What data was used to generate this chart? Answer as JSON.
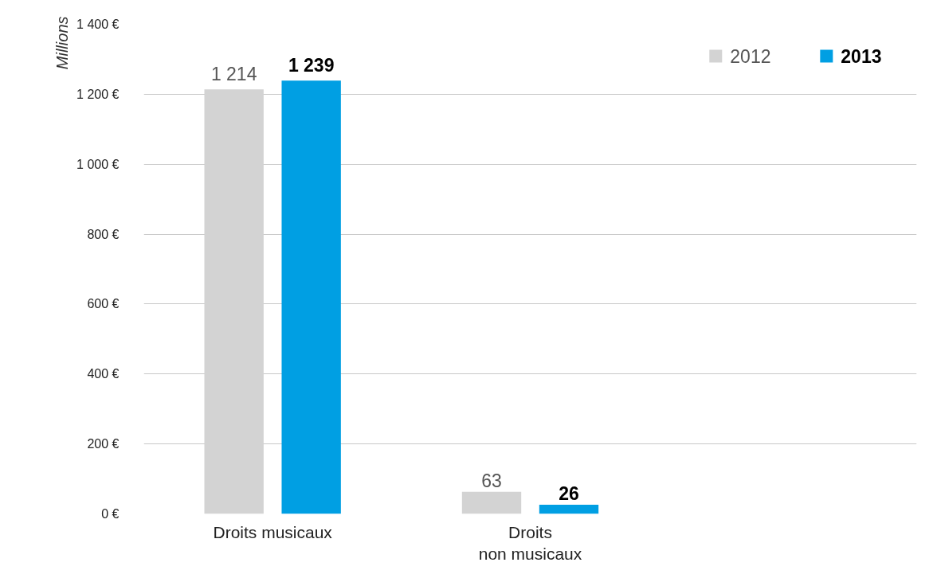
{
  "chart_data": {
    "type": "bar",
    "ylabel": "Millions",
    "categories": [
      "Droits musicaux",
      "Droits\nnon musicaux",
      null
    ],
    "series": [
      {
        "name": "2012",
        "color": "#d3d3d3",
        "values": [
          1214,
          63,
          null
        ],
        "value_labels": [
          "1 214",
          "63",
          null
        ]
      },
      {
        "name": "2013",
        "color": "#009fe3",
        "values": [
          1239,
          26,
          null
        ],
        "value_labels": [
          "1 239",
          "26",
          null
        ]
      }
    ],
    "ylim": [
      0,
      1400
    ],
    "yticks": [
      {
        "value": 0,
        "label": "0 €"
      },
      {
        "value": 200,
        "label": "200 €"
      },
      {
        "value": 400,
        "label": "400 €"
      },
      {
        "value": 600,
        "label": "600 €"
      },
      {
        "value": 800,
        "label": "800 €"
      },
      {
        "value": 1000,
        "label": "1 000 €"
      },
      {
        "value": 1200,
        "label": "1 200 €"
      },
      {
        "value": 1400,
        "label": "1 400 €"
      }
    ],
    "grid": "y",
    "legend": "top right"
  }
}
